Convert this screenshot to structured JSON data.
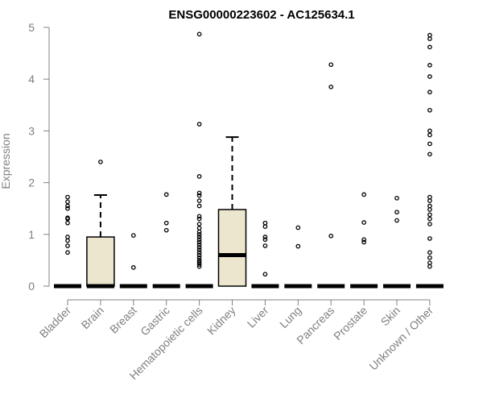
{
  "chart_data": {
    "type": "boxplot",
    "title": "ENSG00000223602 - AC125634.1",
    "ylabel": "Expression",
    "xlabel": "",
    "ylim": [
      0,
      5
    ],
    "yticks": [
      "0",
      "1",
      "2",
      "3",
      "4",
      "5"
    ],
    "grid": false,
    "colors": {
      "box_fill": "#ede6cf",
      "axis": "#808080",
      "line": "#000000"
    },
    "categories": [
      {
        "label": "Bladder",
        "q1": 0,
        "median": 0,
        "q3": 0,
        "whisker_low": 0,
        "whisker_high": 0,
        "outliers": [
          0.65,
          0.78,
          0.88,
          0.95,
          1.22,
          1.3,
          1.32,
          1.5,
          1.55,
          1.63,
          1.72
        ]
      },
      {
        "label": "Brain",
        "q1": 0,
        "median": 0,
        "q3": 0.95,
        "whisker_low": 0,
        "whisker_high": 1.76,
        "outliers": [
          2.4
        ]
      },
      {
        "label": "Breast",
        "q1": 0,
        "median": 0,
        "q3": 0,
        "whisker_low": 0,
        "whisker_high": 0,
        "outliers": [
          0.36,
          0.98
        ]
      },
      {
        "label": "Gastric",
        "q1": 0,
        "median": 0,
        "q3": 0,
        "whisker_low": 0,
        "whisker_high": 0,
        "outliers": [
          1.08,
          1.22,
          1.77
        ]
      },
      {
        "label": "Hematopoietic cells",
        "q1": 0,
        "median": 0,
        "q3": 0,
        "whisker_low": 0,
        "whisker_high": 0,
        "outliers": [
          0.38,
          0.42,
          0.46,
          0.5,
          0.55,
          0.6,
          0.65,
          0.7,
          0.75,
          0.8,
          0.85,
          0.9,
          0.95,
          1.0,
          1.05,
          1.12,
          1.2,
          1.3,
          1.35,
          1.55,
          1.65,
          1.75,
          1.8,
          2.12,
          3.13,
          4.87
        ]
      },
      {
        "label": "Kidney",
        "q1": 0,
        "median": 0.6,
        "q3": 1.48,
        "whisker_low": 0,
        "whisker_high": 2.88,
        "outliers": []
      },
      {
        "label": "Liver",
        "q1": 0,
        "median": 0,
        "q3": 0,
        "whisker_low": 0,
        "whisker_high": 0,
        "outliers": [
          0.23,
          0.78,
          0.9,
          0.95,
          1.15,
          1.22
        ]
      },
      {
        "label": "Lung",
        "q1": 0,
        "median": 0,
        "q3": 0,
        "whisker_low": 0,
        "whisker_high": 0,
        "outliers": [
          0.77,
          1.13
        ]
      },
      {
        "label": "Pancreas",
        "q1": 0,
        "median": 0,
        "q3": 0,
        "whisker_low": 0,
        "whisker_high": 0,
        "outliers": [
          0.97,
          3.85,
          4.28
        ]
      },
      {
        "label": "Prostate",
        "q1": 0,
        "median": 0,
        "q3": 0,
        "whisker_low": 0,
        "whisker_high": 0,
        "outliers": [
          0.85,
          0.9,
          1.23,
          1.77
        ]
      },
      {
        "label": "Skin",
        "q1": 0,
        "median": 0,
        "q3": 0,
        "whisker_low": 0,
        "whisker_high": 0,
        "outliers": [
          1.27,
          1.43,
          1.7
        ]
      },
      {
        "label": "Unknown / Other",
        "q1": 0,
        "median": 0,
        "q3": 0,
        "whisker_low": 0,
        "whisker_high": 0,
        "outliers": [
          0.38,
          0.45,
          0.55,
          0.65,
          0.92,
          1.2,
          1.3,
          1.38,
          1.48,
          1.55,
          1.65,
          1.72,
          2.55,
          2.75,
          2.92,
          3.0,
          3.4,
          3.75,
          4.05,
          4.27,
          4.62,
          4.78,
          4.85
        ]
      }
    ]
  }
}
